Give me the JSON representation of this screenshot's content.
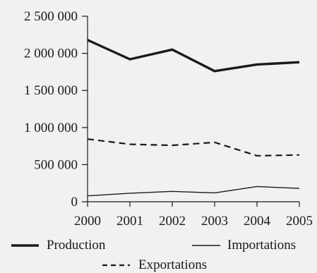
{
  "chart_data": {
    "type": "line",
    "title": "",
    "xlabel": "",
    "ylabel": "",
    "x": [
      "2000",
      "2001",
      "2002",
      "2003",
      "2004",
      "2005"
    ],
    "yticks": [
      0,
      500000,
      1000000,
      1500000,
      2000000,
      2500000
    ],
    "ytick_labels": [
      "0",
      "500 000",
      "1 000 000",
      "1 500 000",
      "2 000 000",
      "2 500 000"
    ],
    "ylim": [
      0,
      2500000
    ],
    "grid": false,
    "legend_position": "bottom",
    "series": [
      {
        "name": "Production",
        "style": "thick-solid",
        "color": "#1a1a1a",
        "values": [
          2180000,
          1920000,
          2050000,
          1760000,
          1850000,
          1880000
        ]
      },
      {
        "name": "Importations",
        "style": "thin-solid",
        "color": "#1a1a1a",
        "values": [
          80000,
          115000,
          140000,
          120000,
          205000,
          180000
        ]
      },
      {
        "name": "Exportations",
        "style": "dashed",
        "color": "#1a1a1a",
        "values": [
          845000,
          775000,
          760000,
          800000,
          620000,
          630000
        ]
      }
    ]
  }
}
